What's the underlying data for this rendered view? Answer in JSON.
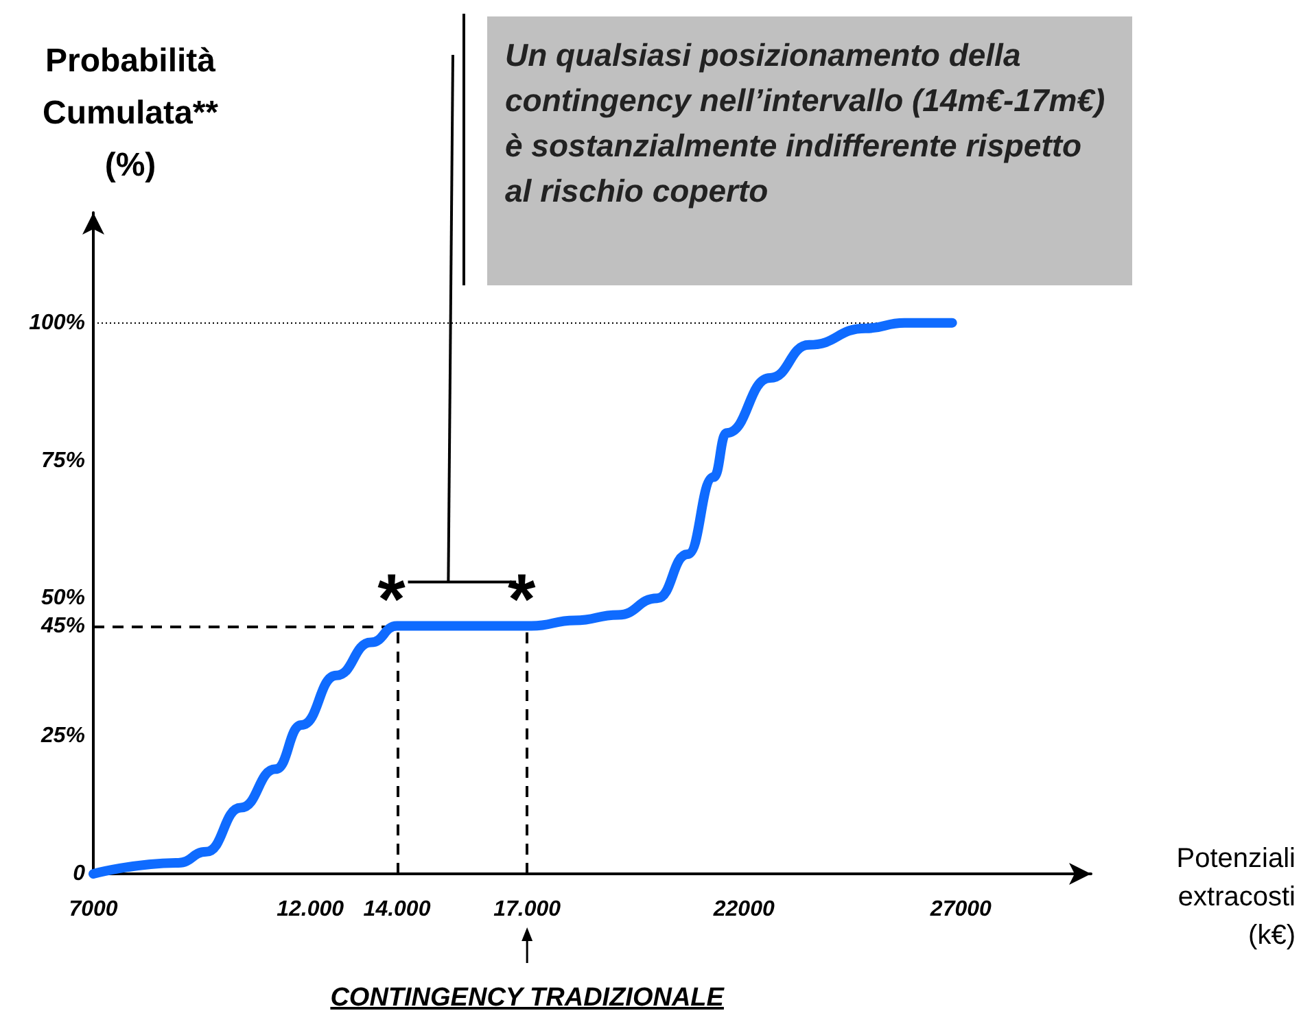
{
  "chart_data": {
    "type": "line",
    "ylabel": "Probabilità Cumulata** (%)",
    "xlabel": "Potenziali extracosti (k€)",
    "x": [
      7000,
      8960,
      9600,
      10400,
      11200,
      11800,
      12600,
      13400,
      14000,
      15600,
      17100,
      18100,
      19100,
      20000,
      20700,
      21300,
      21600,
      22600,
      23500,
      24800,
      25700,
      26800
    ],
    "series": [
      {
        "color": "#0f6bff",
        "values": [
          0,
          2,
          4,
          12,
          19,
          27,
          36,
          42,
          45,
          45,
          45,
          46,
          47,
          50,
          58,
          72,
          80,
          90,
          96,
          99,
          100,
          100
        ]
      }
    ],
    "xlim": [
      7000,
      30000
    ],
    "xticks": [
      7000,
      {
        "value": 12000,
        "label": "12.000"
      },
      {
        "value": 14000,
        "label": "14.000"
      },
      {
        "value": 17000,
        "label": "17.000"
      },
      22000,
      27000
    ],
    "ylim": [
      0,
      120
    ],
    "yticks": [
      {
        "value": 0,
        "label": "0"
      },
      {
        "value": 25,
        "label": "25%"
      },
      {
        "value": 45,
        "label": "45%"
      },
      {
        "value": 50,
        "label": "50%"
      },
      {
        "value": 75,
        "label": "75%"
      },
      {
        "value": 100,
        "label": "100%"
      }
    ],
    "grid": false,
    "line_style": "solid",
    "ref_lines": [
      {
        "axis": "y",
        "value": 100,
        "line_style": "dotted"
      },
      {
        "axis": "y",
        "value": 45,
        "line_style": "dashed"
      },
      {
        "axis": "x",
        "value": 14000,
        "line_style": "dashed"
      },
      {
        "axis": "x",
        "value": 17000,
        "line_style": "dashed"
      }
    ],
    "annotations": [
      "Un qualsiasi posizionamento della contingency nell’intervallo (14m€-17m€) è sostanzialmente indifferente rispetto al rischio coperto",
      {
        "text": "*",
        "x": 14000,
        "y": 45
      },
      {
        "text": "*",
        "x": 17000,
        "y": 45
      },
      "CONTINGENCY TRADIZIONALE"
    ]
  }
}
